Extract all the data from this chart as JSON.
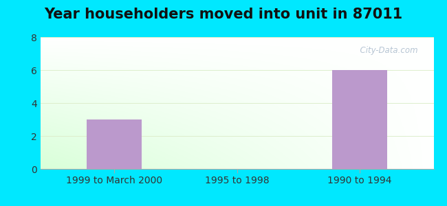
{
  "title": "Year householders moved into unit in 87011",
  "categories": [
    "1999 to March 2000",
    "1995 to 1998",
    "1990 to 1994"
  ],
  "values": [
    3,
    0,
    6
  ],
  "bar_color": "#bb99cc",
  "ylim": [
    0,
    8
  ],
  "yticks": [
    0,
    2,
    4,
    6,
    8
  ],
  "background_color": "#00e8ff",
  "title_fontsize": 15,
  "tick_fontsize": 10,
  "grid_color": "#ddeecc",
  "watermark": "  City-Data.com",
  "watermark_color": "#aabbcc"
}
